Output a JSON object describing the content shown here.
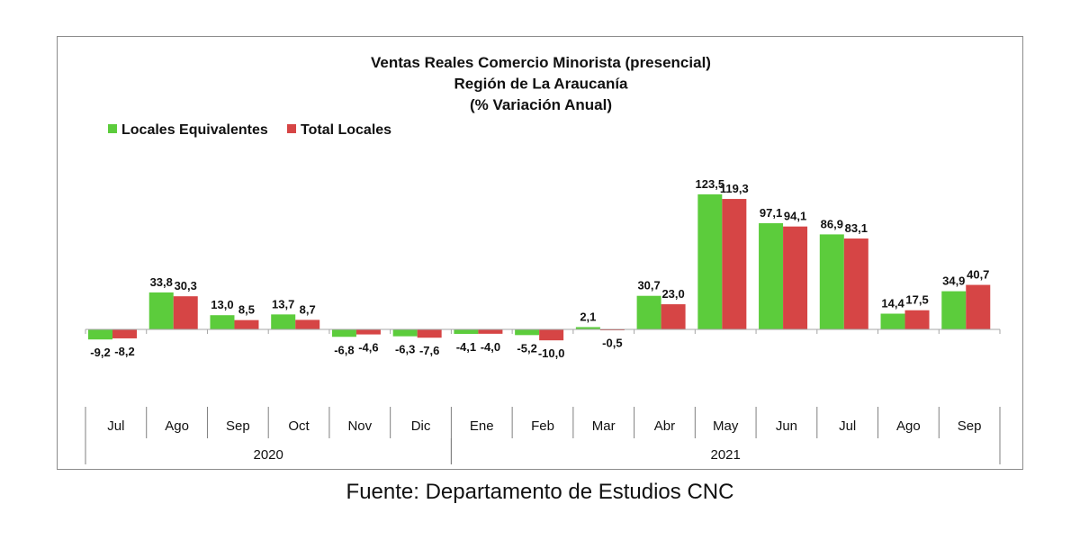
{
  "chart_data": {
    "type": "bar",
    "title_lines": [
      "Ventas Reales Comercio Minorista (presencial)",
      "Región de La Araucanía",
      "(% Variación Anual)"
    ],
    "categories": [
      "Jul",
      "Ago",
      "Sep",
      "Oct",
      "Nov",
      "Dic",
      "Ene",
      "Feb",
      "Mar",
      "Abr",
      "May",
      "Jun",
      "Jul",
      "Ago",
      "Sep"
    ],
    "year_groups": [
      {
        "label": "2020",
        "from": 0,
        "to": 5
      },
      {
        "label": "2021",
        "from": 6,
        "to": 14
      }
    ],
    "series": [
      {
        "name": "Locales Equivalentes",
        "color": "#5ccc3c",
        "values": [
          -9.2,
          33.8,
          13.0,
          13.7,
          -6.8,
          -6.3,
          -4.1,
          -5.2,
          2.1,
          30.7,
          123.5,
          97.1,
          86.9,
          14.4,
          34.9
        ],
        "labels": [
          "-9,2",
          "33,8",
          "13,0",
          "13,7",
          "-6,8",
          "-6,3",
          "-4,1",
          "-5,2",
          "2,1",
          "30,7",
          "123,5",
          "97,1",
          "86,9",
          "14,4",
          "34,9"
        ]
      },
      {
        "name": "Total Locales",
        "color": "#d64545",
        "values": [
          -8.2,
          30.3,
          8.5,
          8.7,
          -4.6,
          -7.6,
          -4.0,
          -10.0,
          -0.5,
          23.0,
          119.3,
          94.1,
          83.1,
          17.5,
          40.7
        ],
        "labels": [
          "-8,2",
          "30,3",
          "8,5",
          "8,7",
          "-4,6",
          "-7,6",
          "-4,0",
          "-10,0",
          "-0,5",
          "23,0",
          "119,3",
          "94,1",
          "83,1",
          "17,5",
          "40,7"
        ]
      }
    ],
    "ylim": [
      -10,
      125
    ],
    "legend_position": "top-left",
    "grid": false
  },
  "source": "Fuente: Departamento de Estudios CNC"
}
